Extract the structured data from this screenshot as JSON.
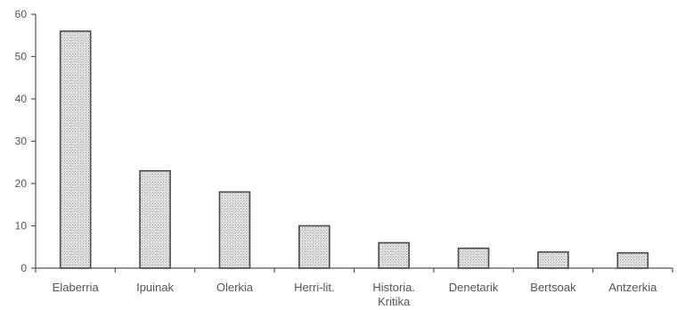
{
  "chart_data": {
    "type": "bar",
    "categories": [
      "Elaberria",
      "Ipuinak",
      "Olerkia",
      "Herri-lit.",
      "Historia.\nKritika",
      "Denetarik",
      "Bertsoak",
      "Antzerkia"
    ],
    "values": [
      56,
      23,
      18,
      10,
      6,
      4.7,
      3.8,
      3.6
    ],
    "title": "",
    "xlabel": "",
    "ylabel": "",
    "ylim": [
      0,
      60
    ],
    "yticks": [
      0,
      10,
      20,
      30,
      40,
      50,
      60
    ],
    "grid": false,
    "legend": "none",
    "bar_fill": "#dcdcdc",
    "bar_stroke": "#4a4a4a",
    "axis_color": "#555555"
  }
}
